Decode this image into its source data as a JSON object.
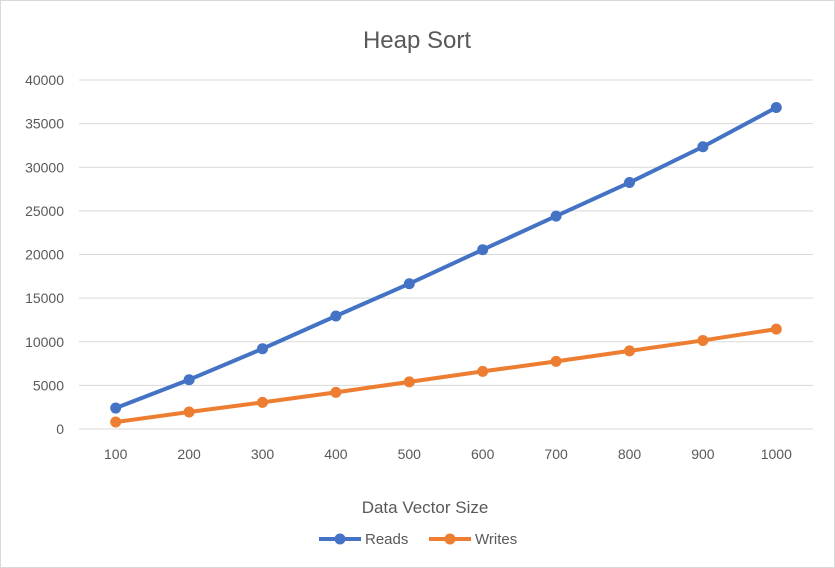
{
  "chart_data": {
    "type": "line",
    "title": "Heap Sort",
    "xlabel": "Data Vector Size",
    "ylabel": "",
    "categories": [
      "100",
      "200",
      "300",
      "400",
      "500",
      "600",
      "700",
      "800",
      "900",
      "1000"
    ],
    "ylim": [
      0,
      40000
    ],
    "yticks": [
      0,
      5000,
      10000,
      15000,
      20000,
      25000,
      30000,
      35000,
      40000
    ],
    "grid": true,
    "legend_position": "bottom",
    "series": [
      {
        "name": "Reads",
        "color": "#4472c4",
        "values": [
          2400,
          5650,
          9200,
          12950,
          16650,
          20550,
          24400,
          28250,
          32350,
          36850
        ]
      },
      {
        "name": "Writes",
        "color": "#ed7d31",
        "values": [
          800,
          1950,
          3050,
          4200,
          5400,
          6600,
          7750,
          8950,
          10150,
          11450
        ]
      }
    ]
  }
}
